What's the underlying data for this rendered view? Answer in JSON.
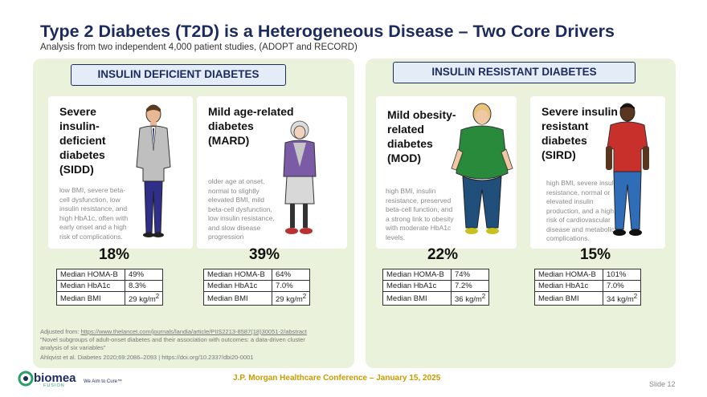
{
  "header": {
    "title": "Type 2 Diabetes (T2D) is a Heterogeneous Disease – Two Core Drivers",
    "subtitle": "Analysis from two independent 4,000 patient studies, (ADOPT and RECORD)"
  },
  "sections": {
    "left_label": "INSULIN DEFICIENT DIABETES",
    "right_label": "INSULIN RESISTANT DIABETES"
  },
  "clusters": [
    {
      "title_lines": [
        "Severe",
        "insulin-",
        "deficient",
        "diabetes",
        "(SIDD)"
      ],
      "desc_lines": [
        "low BMI, severe beta-",
        "cell dysfunction, low",
        "insulin resistance, and",
        "high HbA1c, often with",
        "early onset and a high",
        "risk of complications."
      ],
      "pct": "18%",
      "stats": [
        {
          "k": "Median HOMA-B",
          "v": "49%"
        },
        {
          "k": "Median HbA1c",
          "v": "8.3%"
        },
        {
          "k": "Median BMI",
          "v": "29 kg/m",
          "sup": "2"
        }
      ]
    },
    {
      "title_lines": [
        "Mild age-related",
        "diabetes",
        "(MARD)"
      ],
      "desc_lines": [
        "older age at onset,",
        "normal to slightly",
        "elevated BMI, mild",
        "beta-cell dysfunction,",
        "low insulin resistance,",
        "and slow disease",
        "progression"
      ],
      "pct": "39%",
      "stats": [
        {
          "k": "Median HOMA-B",
          "v": "64%"
        },
        {
          "k": "Median HbA1c",
          "v": "7.0%"
        },
        {
          "k": "Median BMI",
          "v": "29 kg/m",
          "sup": "2"
        }
      ]
    },
    {
      "title_lines": [
        "Mild obesity-",
        "related",
        "diabetes",
        "(MOD)"
      ],
      "desc_lines": [
        "high BMI, insulin",
        "resistance, preserved",
        "beta-cell function, and",
        "a strong link to obesity",
        "with moderate HbA1c",
        "levels."
      ],
      "pct": "22%",
      "stats": [
        {
          "k": "Median HOMA-B",
          "v": "74%"
        },
        {
          "k": "Median HbA1c",
          "v": "7.2%"
        },
        {
          "k": "Median BMI",
          "v": "36 kg/m",
          "sup": "2"
        }
      ]
    },
    {
      "title_lines": [
        "Severe insulin",
        "resistant",
        "diabetes",
        "(SIRD)"
      ],
      "desc_lines": [
        "high BMI, severe insulin",
        "resistance, normal or",
        "elevated insulin",
        "production, and a high",
        "risk of cardiovascular",
        "disease and metabolic",
        "complications."
      ],
      "pct": "15%",
      "stats": [
        {
          "k": "Median HOMA-B",
          "v": "101%"
        },
        {
          "k": "Median HbA1c",
          "v": "7.0%"
        },
        {
          "k": "Median BMI",
          "v": "34 kg/m",
          "sup": "2"
        }
      ]
    }
  ],
  "footnotes": {
    "adapted_prefix": "Adjusted from: ",
    "adapted_link": "https://www.thelancet.com/journals/landia/article/PIIS2213-8587(18)30051-2/abstract",
    "quote_line1": "\"Novel subgroups of adult-onset diabetes and their association with outcomes: a data-driven cluster",
    "quote_line2": "analysis of six variables\"",
    "citation": "Ahlqvist et al. Diabetes 2020;69:2086–2093 | https://doi.org/10.2337/dbi20-0001"
  },
  "footer": {
    "logo_name": "biomea",
    "logo_sub": "FUSION",
    "tagline": "We Aim to Cure™",
    "conference": "J.P. Morgan Healthcare Conference – January 15, 2025",
    "slide": "Slide 12"
  },
  "colors": {
    "navy": "#1c2b5e",
    "panel_green": "#eaf2dc",
    "gold": "#c89a00",
    "brand_green": "#2e9d6b"
  }
}
